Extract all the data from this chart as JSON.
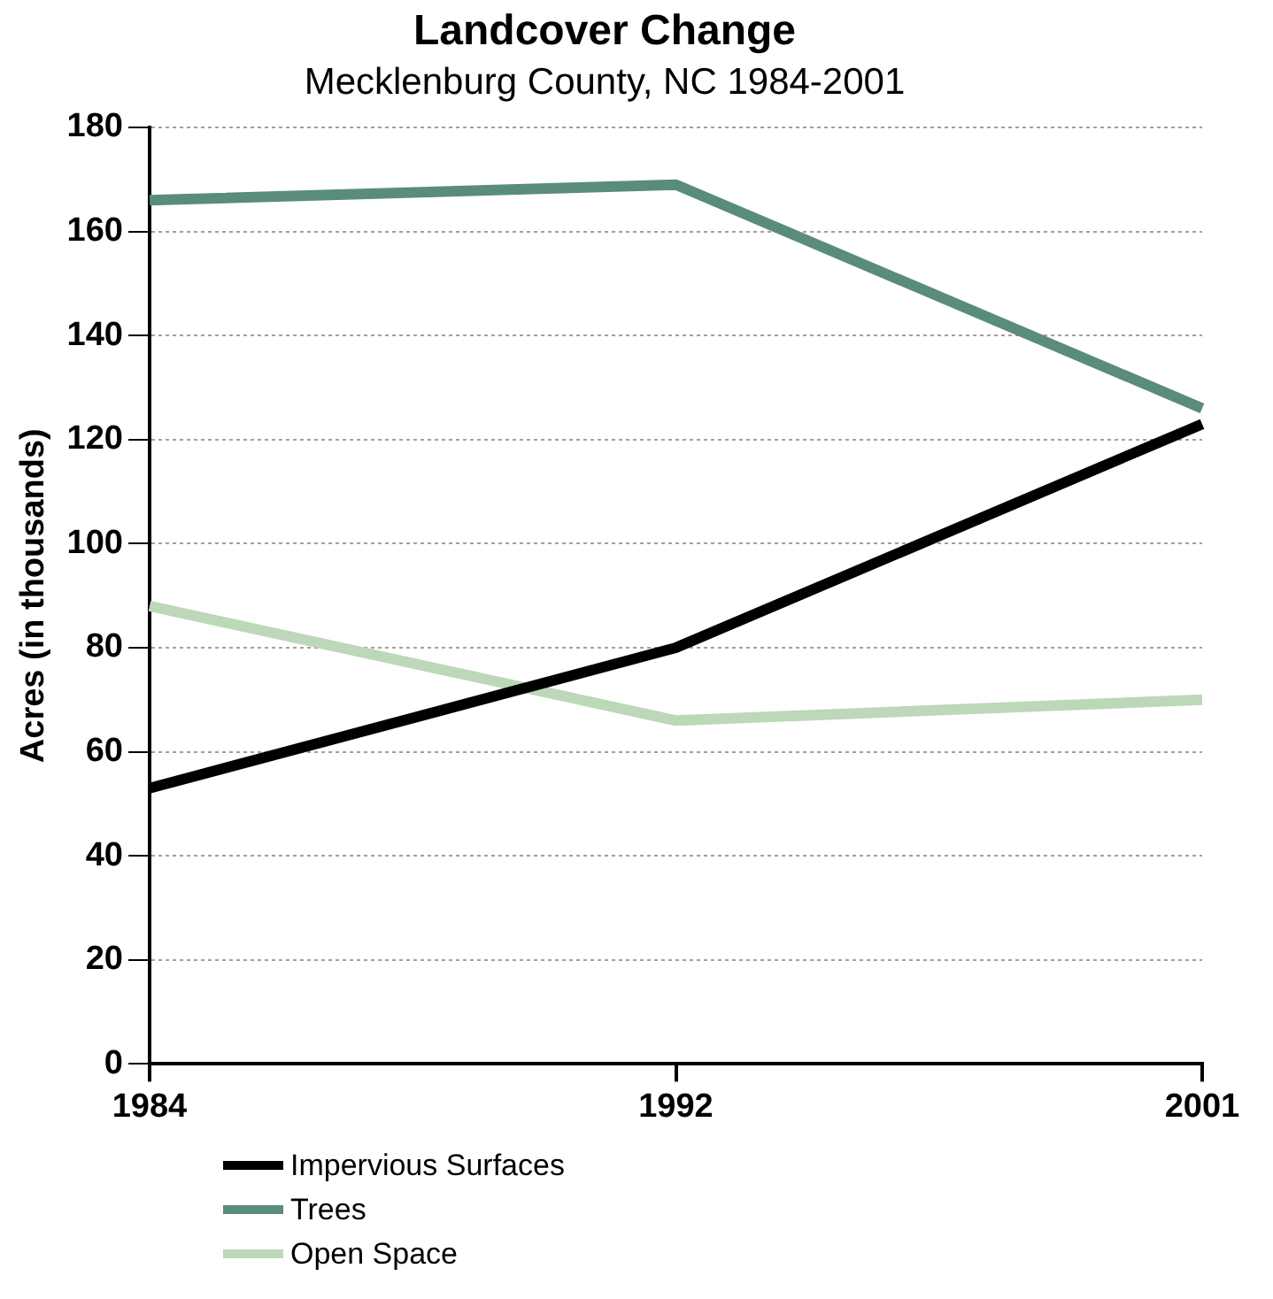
{
  "chart_data": {
    "type": "line",
    "title": "Landcover Change",
    "subtitle": "Mecklenburg County, NC 1984-2001",
    "ylabel": "Acres (in thousands)",
    "categories": [
      "1984",
      "1992",
      "2001"
    ],
    "series": [
      {
        "name": "Impervious Surfaces",
        "color": "#000000",
        "values": [
          53,
          80,
          123
        ]
      },
      {
        "name": "Trees",
        "color": "#5a8c7a",
        "values": [
          166,
          169,
          126
        ]
      },
      {
        "name": "Open Space",
        "color": "#bcd8b8",
        "values": [
          88,
          66,
          70
        ]
      }
    ],
    "ylim": [
      0,
      180
    ],
    "yticks": [
      0,
      20,
      40,
      60,
      80,
      100,
      120,
      140,
      160,
      180
    ],
    "grid": "y",
    "legend": "bottom left",
    "marker": "none",
    "line_style": "solid"
  }
}
